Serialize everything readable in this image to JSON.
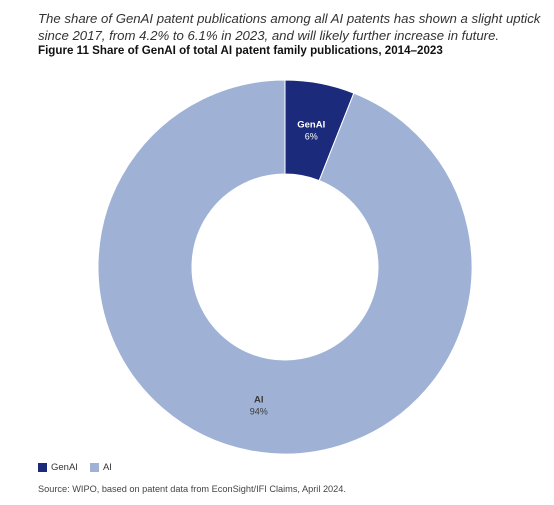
{
  "intro_text": "The share of GenAI patent publications among all AI patents has shown a slight uptick since 2017, from 4.2% to 6.1% in 2023, and will likely further increase in future.",
  "figure_title": "Figure 11 Share of GenAI of total AI patent family publications, 2014–2023",
  "source": "Source: WIPO, based on patent data from EconSight/IFI Claims, April 2024.",
  "legend": [
    {
      "label": "GenAI",
      "color": "#1b2a7a"
    },
    {
      "label": "AI",
      "color": "#9fb2d6"
    }
  ],
  "chart_data": {
    "type": "pie",
    "donut": true,
    "title": "Figure 11 Share of GenAI of total AI patent family publications, 2014–2023",
    "slices": [
      {
        "label": "GenAI",
        "value": 6,
        "display": "6%",
        "color": "#1b2a7a",
        "label_color": "#ffffff"
      },
      {
        "label": "AI",
        "value": 94,
        "display": "94%",
        "color": "#9fb2d6",
        "label_color": "#3a3a3a"
      }
    ],
    "legend_position": "bottom-left"
  }
}
